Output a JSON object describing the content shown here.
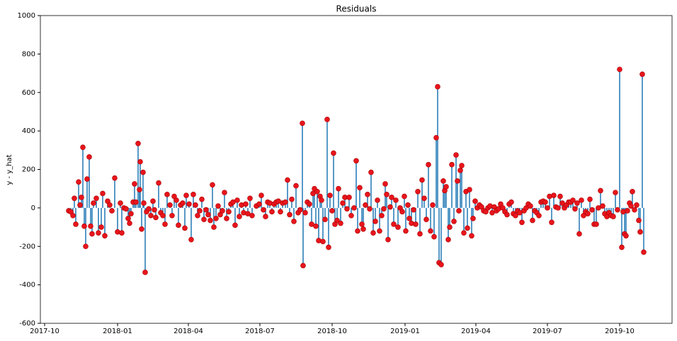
{
  "chart_data": {
    "type": "stem",
    "title": "Residuals",
    "y_label": "y - y_hat",
    "stem_color": "#1f77b4",
    "marker_color": "#e8141c",
    "xlim": [
      57,
      949
    ],
    "xticks": [
      {
        "value": 63,
        "label": "2017-10"
      },
      {
        "value": 166,
        "label": "2018-01"
      },
      {
        "value": 266,
        "label": "2018-04"
      },
      {
        "value": 367,
        "label": "2018-07"
      },
      {
        "value": 469,
        "label": "2018-10"
      },
      {
        "value": 572,
        "label": "2019-01"
      },
      {
        "value": 672,
        "label": "2019-04"
      },
      {
        "value": 773,
        "label": "2019-07"
      },
      {
        "value": 875,
        "label": "2019-10"
      }
    ],
    "ylim": [
      -600,
      1000
    ],
    "yticks": [
      -600,
      -400,
      -200,
      0,
      200,
      400,
      600,
      800,
      1000
    ],
    "x": [
      97,
      100,
      103,
      105,
      107,
      111,
      113,
      115,
      117,
      119,
      121,
      123,
      126,
      128,
      130,
      132,
      136,
      139,
      143,
      145,
      148,
      152,
      155,
      158,
      162,
      166,
      170,
      172,
      175,
      178,
      181,
      183,
      185,
      188,
      190,
      192,
      195,
      197,
      198,
      200,
      202,
      203,
      205,
      207,
      210,
      213,
      216,
      218,
      220,
      224,
      227,
      230,
      233,
      236,
      240,
      243,
      246,
      249,
      252,
      255,
      258,
      261,
      263,
      267,
      270,
      273,
      276,
      279,
      282,
      285,
      288,
      291,
      294,
      297,
      300,
      302,
      305,
      308,
      311,
      314,
      317,
      320,
      323,
      326,
      329,
      332,
      335,
      338,
      341,
      344,
      347,
      350,
      353,
      356,
      362,
      366,
      369,
      372,
      375,
      378,
      381,
      384,
      387,
      390,
      393,
      396,
      399,
      403,
      406,
      409,
      412,
      415,
      418,
      421,
      424,
      427,
      428,
      431,
      434,
      437,
      440,
      442,
      444,
      446,
      448,
      450,
      452,
      454,
      456,
      459,
      462,
      464,
      466,
      469,
      471,
      473,
      476,
      478,
      481,
      484,
      487,
      490,
      493,
      496,
      500,
      503,
      505,
      508,
      511,
      513,
      516,
      519,
      522,
      524,
      527,
      530,
      533,
      536,
      539,
      542,
      544,
      546,
      548,
      551,
      553,
      556,
      559,
      562,
      565,
      568,
      571,
      573,
      576,
      578,
      581,
      584,
      587,
      590,
      593,
      596,
      599,
      602,
      605,
      608,
      611,
      613,
      616,
      618,
      620,
      623,
      626,
      628,
      630,
      633,
      635,
      638,
      641,
      644,
      646,
      648,
      650,
      652,
      655,
      658,
      660,
      663,
      666,
      668,
      671,
      674,
      677,
      680,
      683,
      686,
      689,
      692,
      695,
      698,
      701,
      704,
      707,
      710,
      713,
      716,
      719,
      722,
      725,
      728,
      731,
      734,
      737,
      740,
      743,
      746,
      749,
      752,
      755,
      758,
      761,
      764,
      767,
      770,
      773,
      776,
      779,
      782,
      785,
      788,
      791,
      794,
      797,
      800,
      803,
      806,
      809,
      812,
      815,
      818,
      821,
      824,
      827,
      830,
      833,
      836,
      839,
      842,
      845,
      848,
      851,
      854,
      857,
      860,
      863,
      866,
      869,
      872,
      875,
      878,
      880,
      882,
      884,
      886,
      889,
      891,
      893,
      896,
      899,
      902,
      904,
      907,
      909
    ],
    "values": [
      -15,
      -20,
      -40,
      50,
      -85,
      135,
      15,
      55,
      315,
      -95,
      -200,
      150,
      265,
      -95,
      -135,
      25,
      50,
      -130,
      -100,
      75,
      -145,
      35,
      15,
      -15,
      155,
      -125,
      25,
      -130,
      0,
      -5,
      -55,
      -80,
      -30,
      30,
      125,
      30,
      335,
      95,
      240,
      -110,
      185,
      25,
      -335,
      -20,
      -5,
      -40,
      35,
      -10,
      -50,
      130,
      -25,
      -40,
      -85,
      70,
      15,
      -40,
      60,
      40,
      -90,
      15,
      25,
      -105,
      65,
      20,
      -165,
      70,
      15,
      -40,
      -15,
      45,
      -60,
      -10,
      -35,
      -65,
      120,
      -100,
      -55,
      10,
      -35,
      -15,
      80,
      -55,
      -20,
      20,
      30,
      -90,
      40,
      -45,
      15,
      -25,
      20,
      -30,
      50,
      -40,
      10,
      20,
      65,
      -10,
      -45,
      30,
      25,
      -20,
      20,
      30,
      35,
      -20,
      25,
      30,
      145,
      -35,
      45,
      -70,
      115,
      -25,
      -10,
      440,
      -300,
      -25,
      30,
      20,
      -85,
      75,
      100,
      -95,
      85,
      -170,
      60,
      40,
      -175,
      -60,
      460,
      -205,
      65,
      -15,
      285,
      -85,
      -65,
      100,
      -80,
      25,
      55,
      -5,
      55,
      -40,
      0,
      245,
      -120,
      105,
      -85,
      -110,
      15,
      70,
      -5,
      185,
      -130,
      -70,
      40,
      -120,
      -40,
      -5,
      125,
      70,
      -165,
      5,
      55,
      -85,
      40,
      -100,
      0,
      -20,
      60,
      -120,
      15,
      -55,
      -80,
      -10,
      -85,
      85,
      -135,
      145,
      50,
      -60,
      225,
      -120,
      15,
      -150,
      365,
      630,
      -285,
      -295,
      140,
      90,
      110,
      -165,
      -100,
      225,
      -70,
      275,
      140,
      -15,
      195,
      220,
      -130,
      85,
      -105,
      95,
      -145,
      -55,
      35,
      0,
      15,
      5,
      -15,
      -20,
      0,
      10,
      -25,
      5,
      -15,
      -5,
      20,
      0,
      -20,
      -35,
      20,
      30,
      -30,
      -40,
      -15,
      -25,
      -75,
      -15,
      0,
      20,
      10,
      -65,
      -15,
      -25,
      -40,
      30,
      35,
      30,
      0,
      60,
      -75,
      65,
      5,
      0,
      60,
      25,
      0,
      15,
      30,
      30,
      40,
      -5,
      25,
      -135,
      40,
      -40,
      -20,
      -30,
      45,
      -10,
      -85,
      -85,
      0,
      90,
      10,
      -30,
      -45,
      -25,
      -40,
      -45,
      80,
      -10,
      720,
      -205,
      -20,
      -135,
      -145,
      -15,
      25,
      10,
      85,
      -10,
      15,
      -65,
      -125,
      695,
      -230
    ]
  }
}
